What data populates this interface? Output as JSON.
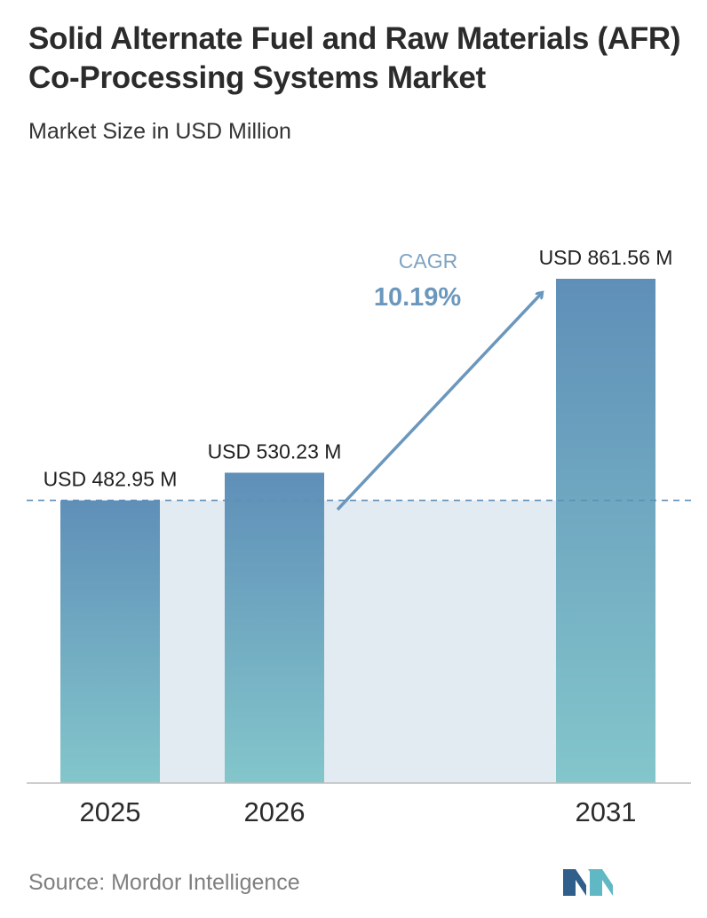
{
  "header": {
    "title": "Solid Alternate Fuel and Raw Materials (AFR) Co-Processing Systems Market",
    "subtitle": "Market Size in USD Million"
  },
  "footer": {
    "source": "Source: Mordor Intelligence",
    "logo_icon": "mordor-intelligence-logo"
  },
  "colors": {
    "bar_top": "#5f8fb8",
    "bar_bottom": "#83c6cb",
    "band": "#e2ebf2",
    "dashed_line": "#5f8fb8",
    "arrow": "#6b97bd",
    "cagr_label": "#7fa3c2",
    "cagr_value": "#6b97bd",
    "logo_dark": "#2f5f8a",
    "logo_light": "#5fb8c4"
  },
  "chart_data": {
    "type": "bar",
    "title": "Solid Alternate Fuel and Raw Materials (AFR) Co-Processing Systems Market",
    "subtitle": "Market Size in USD Million",
    "categories": [
      "2025",
      "2026",
      "2031"
    ],
    "values": [
      482.95,
      530.23,
      861.56
    ],
    "value_labels": [
      "USD 482.95 M",
      "USD 530.23 M",
      "USD 861.56 M"
    ],
    "ylim": [
      0,
      861.56
    ],
    "grid": false,
    "annotation": {
      "label": "CAGR",
      "value": "10.19%"
    }
  }
}
